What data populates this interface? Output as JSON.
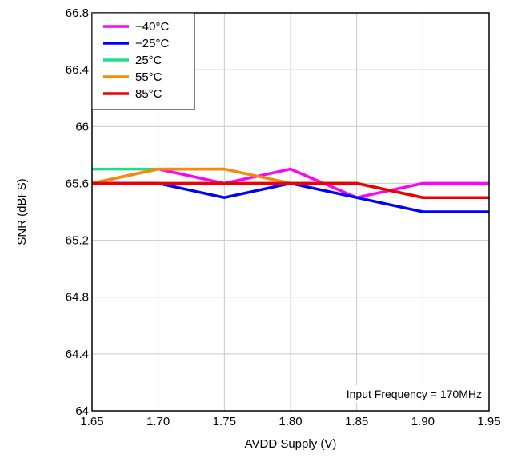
{
  "chart_data": {
    "type": "line",
    "xlabel": "AVDD Supply (V)",
    "ylabel": "SNR (dBFS)",
    "xlim": [
      1.65,
      1.95
    ],
    "ylim": [
      64,
      66.8
    ],
    "x_ticks": [
      "1.65",
      "1.70",
      "1.75",
      "1.80",
      "1.85",
      "1.90",
      "1.95"
    ],
    "y_ticks": [
      "64",
      "64.4",
      "64.8",
      "65.2",
      "65.6",
      "66",
      "66.4",
      "66.8"
    ],
    "grid": true,
    "legend_position": "top-left",
    "annotation": "Input Frequency = 170MHz",
    "x": [
      1.65,
      1.7,
      1.75,
      1.8,
      1.85,
      1.9,
      1.95
    ],
    "series": [
      {
        "name": "−40°C",
        "color": "#ff00ff",
        "values": [
          65.6,
          65.7,
          65.6,
          65.7,
          65.5,
          65.6,
          65.6
        ]
      },
      {
        "name": "−25°C",
        "color": "#0000ff",
        "values": [
          65.6,
          65.6,
          65.5,
          65.6,
          65.5,
          65.4,
          65.4
        ]
      },
      {
        "name": "25°C",
        "color": "#22dd88",
        "values": [
          65.7,
          65.7,
          65.7,
          65.6,
          65.6,
          65.5,
          65.5
        ]
      },
      {
        "name": "55°C",
        "color": "#ff8800",
        "values": [
          65.6,
          65.7,
          65.7,
          65.6,
          65.6,
          65.5,
          65.5
        ]
      },
      {
        "name": "85°C",
        "color": "#ee0000",
        "values": [
          65.6,
          65.6,
          65.6,
          65.6,
          65.6,
          65.5,
          65.5
        ]
      }
    ]
  }
}
